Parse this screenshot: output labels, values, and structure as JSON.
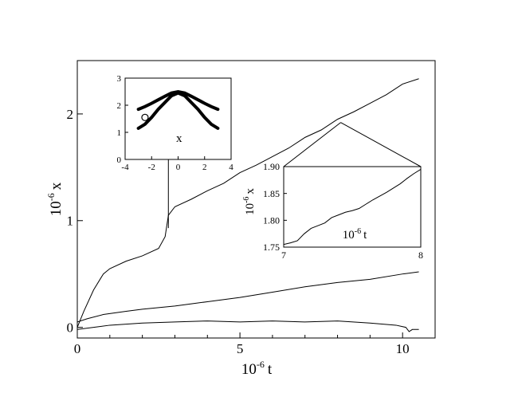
{
  "chart_data": [
    {
      "type": "line",
      "xlabel_base": "10",
      "xlabel_exp": "-6",
      "xlabel_var": "t",
      "ylabel_base": "10",
      "ylabel_exp": "-6",
      "ylabel_var": "x",
      "xlim": [
        0,
        11
      ],
      "ylim": [
        -0.1,
        2.5
      ],
      "xticks": [
        0,
        5,
        10
      ],
      "yticks": [
        0,
        1,
        2
      ],
      "grid": false,
      "series": [
        {
          "x": [
            0,
            0.2,
            0.5,
            0.8,
            1.0,
            1.5,
            2.0,
            2.5,
            2.7,
            2.8,
            3.0,
            3.5,
            4.0,
            4.5,
            5.0,
            5.5,
            6.0,
            6.5,
            7.0,
            7.5,
            8.0,
            8.5,
            9.0,
            9.5,
            10.0,
            10.5
          ],
          "y": [
            0.0,
            0.15,
            0.35,
            0.5,
            0.55,
            0.62,
            0.67,
            0.74,
            0.85,
            1.05,
            1.13,
            1.2,
            1.28,
            1.35,
            1.45,
            1.52,
            1.6,
            1.68,
            1.78,
            1.85,
            1.95,
            2.02,
            2.1,
            2.18,
            2.28,
            2.33
          ]
        },
        {
          "x": [
            0,
            0.3,
            0.8,
            1.5,
            2.0,
            3.0,
            4.0,
            5.0,
            6.0,
            7.0,
            8.0,
            9.0,
            10.0,
            10.5
          ],
          "y": [
            0.05,
            0.08,
            0.12,
            0.15,
            0.17,
            0.2,
            0.24,
            0.28,
            0.33,
            0.38,
            0.42,
            0.45,
            0.5,
            0.52
          ]
        },
        {
          "x": [
            0,
            0.5,
            1.0,
            2.0,
            3.0,
            4.0,
            5.0,
            6.0,
            7.0,
            8.0,
            9.0,
            9.8,
            10.1,
            10.2,
            10.3,
            10.5
          ],
          "y": [
            -0.02,
            0.0,
            0.02,
            0.04,
            0.05,
            0.06,
            0.05,
            0.06,
            0.05,
            0.06,
            0.04,
            0.02,
            0.0,
            -0.04,
            -0.02,
            -0.02
          ]
        }
      ],
      "annotations": [
        {
          "type": "arrow",
          "from": [
            2.8,
            0.93
          ],
          "to": [
            2.8,
            1.95
          ]
        }
      ]
    },
    {
      "type": "line",
      "position": "upper-left inset",
      "xlim": [
        -4,
        4
      ],
      "ylim": [
        0,
        3
      ],
      "xticks": [
        -4,
        -2,
        0,
        2,
        4
      ],
      "yticks": [
        0,
        1,
        2,
        3
      ],
      "label": "x",
      "series": [
        {
          "style": "thick",
          "x": [
            -3,
            -2.5,
            -2,
            -1.5,
            -1,
            -0.5,
            0,
            0.5,
            1,
            1.5,
            2,
            2.5,
            3
          ],
          "y": [
            1.85,
            1.95,
            2.07,
            2.2,
            2.33,
            2.45,
            2.5,
            2.45,
            2.33,
            2.2,
            2.07,
            1.95,
            1.85
          ]
        },
        {
          "style": "thick",
          "x": [
            -3,
            -2.5,
            -2,
            -1.5,
            -1,
            -0.5,
            0,
            0.5,
            1,
            1.5,
            2,
            2.5,
            3
          ],
          "y": [
            1.15,
            1.3,
            1.55,
            1.85,
            2.1,
            2.35,
            2.45,
            2.35,
            2.1,
            1.85,
            1.55,
            1.3,
            1.15
          ]
        }
      ],
      "markers": [
        {
          "x": -2.5,
          "y": 1.55
        }
      ]
    },
    {
      "type": "line",
      "position": "right inset",
      "xlabel_base": "10",
      "xlabel_exp": "-6",
      "xlabel_var": "t",
      "ylabel_base": "10",
      "ylabel_exp": "-6",
      "ylabel_var": "x",
      "xlim": [
        7,
        8
      ],
      "ylim": [
        1.75,
        1.9
      ],
      "xticks": [
        7,
        8
      ],
      "yticks": [
        1.75,
        1.8,
        1.85,
        1.9
      ],
      "series": [
        {
          "x": [
            7.0,
            7.05,
            7.1,
            7.15,
            7.2,
            7.25,
            7.3,
            7.35,
            7.4,
            7.45,
            7.5,
            7.55,
            7.6,
            7.65,
            7.7,
            7.75,
            7.8,
            7.85,
            7.9,
            7.95,
            8.0
          ],
          "y": [
            1.755,
            1.758,
            1.762,
            1.775,
            1.785,
            1.79,
            1.795,
            1.805,
            1.81,
            1.815,
            1.818,
            1.822,
            1.83,
            1.838,
            1.845,
            1.852,
            1.86,
            1.868,
            1.878,
            1.887,
            1.895
          ]
        }
      ]
    }
  ]
}
